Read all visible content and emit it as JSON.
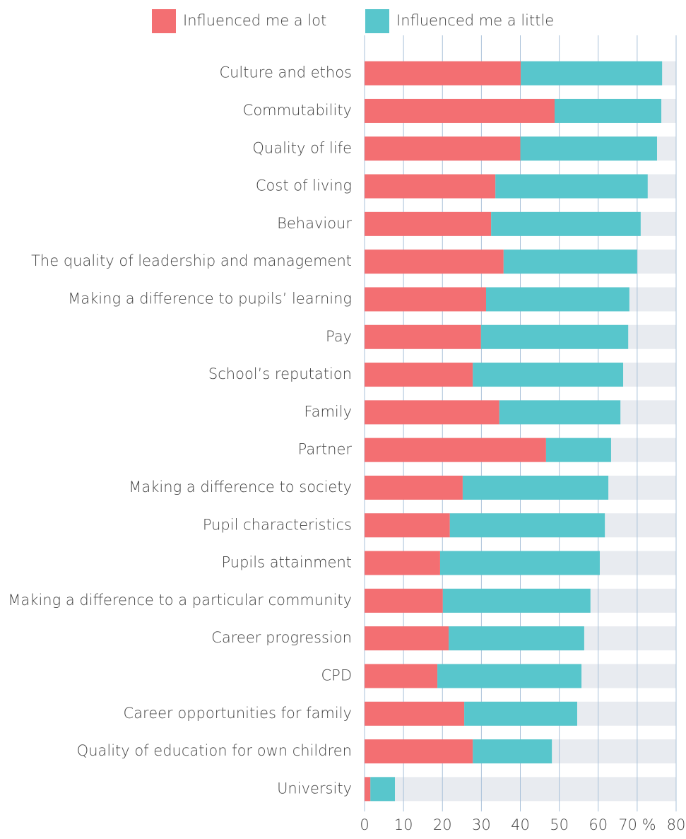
{
  "chart_data": {
    "type": "stacked_barh",
    "categories": [
      "Culture and ethos",
      "Commutability",
      "Quality of life",
      "Cost of living",
      "Behaviour",
      "The quality of leadership and management",
      "Making a difference to pupils’ learning",
      "Pay",
      "School’s reputation",
      "Family",
      "Partner",
      "Making a difference to society",
      "Pupil characteristics",
      "Pupils attainment",
      "Making a difference to a particular community",
      "Career progression",
      "CPD",
      "Career opportunities for family",
      "Quality of education for own children",
      "University"
    ],
    "series": [
      {
        "name": "Influenced me a lot",
        "color": "#f36f72",
        "values": [
          40.1,
          48.8,
          40,
          33.6,
          32.5,
          35.7,
          31.2,
          29.9,
          27.8,
          34.6,
          46.6,
          25.2,
          21.9,
          19.4,
          20.1,
          21.6,
          18.7,
          25.6,
          27.8,
          1.5
        ]
      },
      {
        "name": "Influenced me a little",
        "color": "#58c6cc",
        "values": [
          36.3,
          27.4,
          35.1,
          39.1,
          38.4,
          34.3,
          36.8,
          37.8,
          38.6,
          31.1,
          16.7,
          37.4,
          39.8,
          41,
          37.9,
          34.8,
          37,
          29,
          20.3,
          6.3
        ]
      }
    ],
    "xlim": [
      0,
      80
    ],
    "xticks": [
      0,
      10,
      20,
      30,
      40,
      50,
      60,
      {
        "value": 70,
        "label": "70 %"
      },
      80
    ],
    "grid": true,
    "legend": "top"
  }
}
